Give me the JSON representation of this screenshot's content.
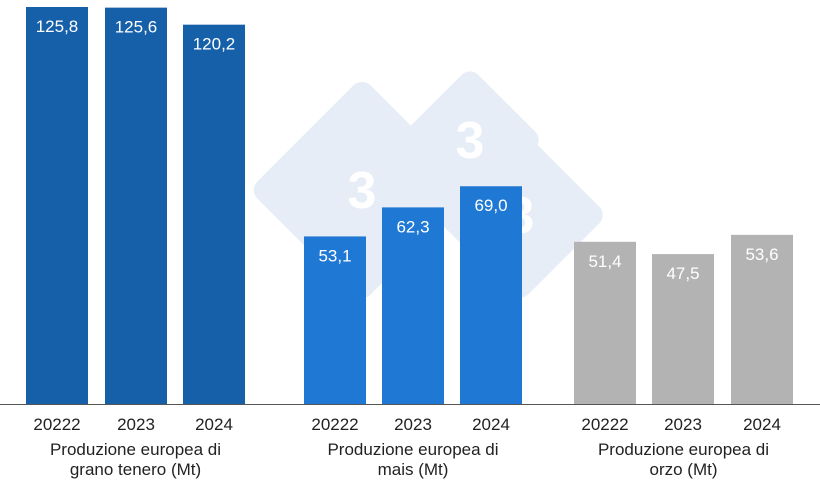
{
  "chart_data": {
    "type": "bar",
    "title": "",
    "xlabel": "",
    "ylabel": "",
    "ylim": [
      0,
      126
    ],
    "grid": false,
    "legend": "none",
    "watermark_text": "3",
    "groups": [
      {
        "label_lines": [
          "Produzione europea di",
          "grano tenero (Mt)"
        ],
        "categories": [
          "20222",
          "2023",
          "2024"
        ],
        "values": [
          125.8,
          125.6,
          120.2
        ],
        "value_labels": [
          "125,8",
          "125,6",
          "120,2"
        ],
        "color": "#1660AA"
      },
      {
        "label_lines": [
          "Produzione europea di",
          "mais (Mt)"
        ],
        "categories": [
          "20222",
          "2023",
          "2024"
        ],
        "values": [
          53.1,
          62.3,
          69.0
        ],
        "value_labels": [
          "53,1",
          "62,3",
          "69,0"
        ],
        "color": "#1E78D4"
      },
      {
        "label_lines": [
          "Produzione europea di",
          "orzo (Mt)"
        ],
        "categories": [
          "20222",
          "2023",
          "2024"
        ],
        "values": [
          51.4,
          47.5,
          53.6
        ],
        "value_labels": [
          "51,4",
          "47,5",
          "53,6"
        ],
        "color": "#B3B3B3"
      }
    ]
  }
}
